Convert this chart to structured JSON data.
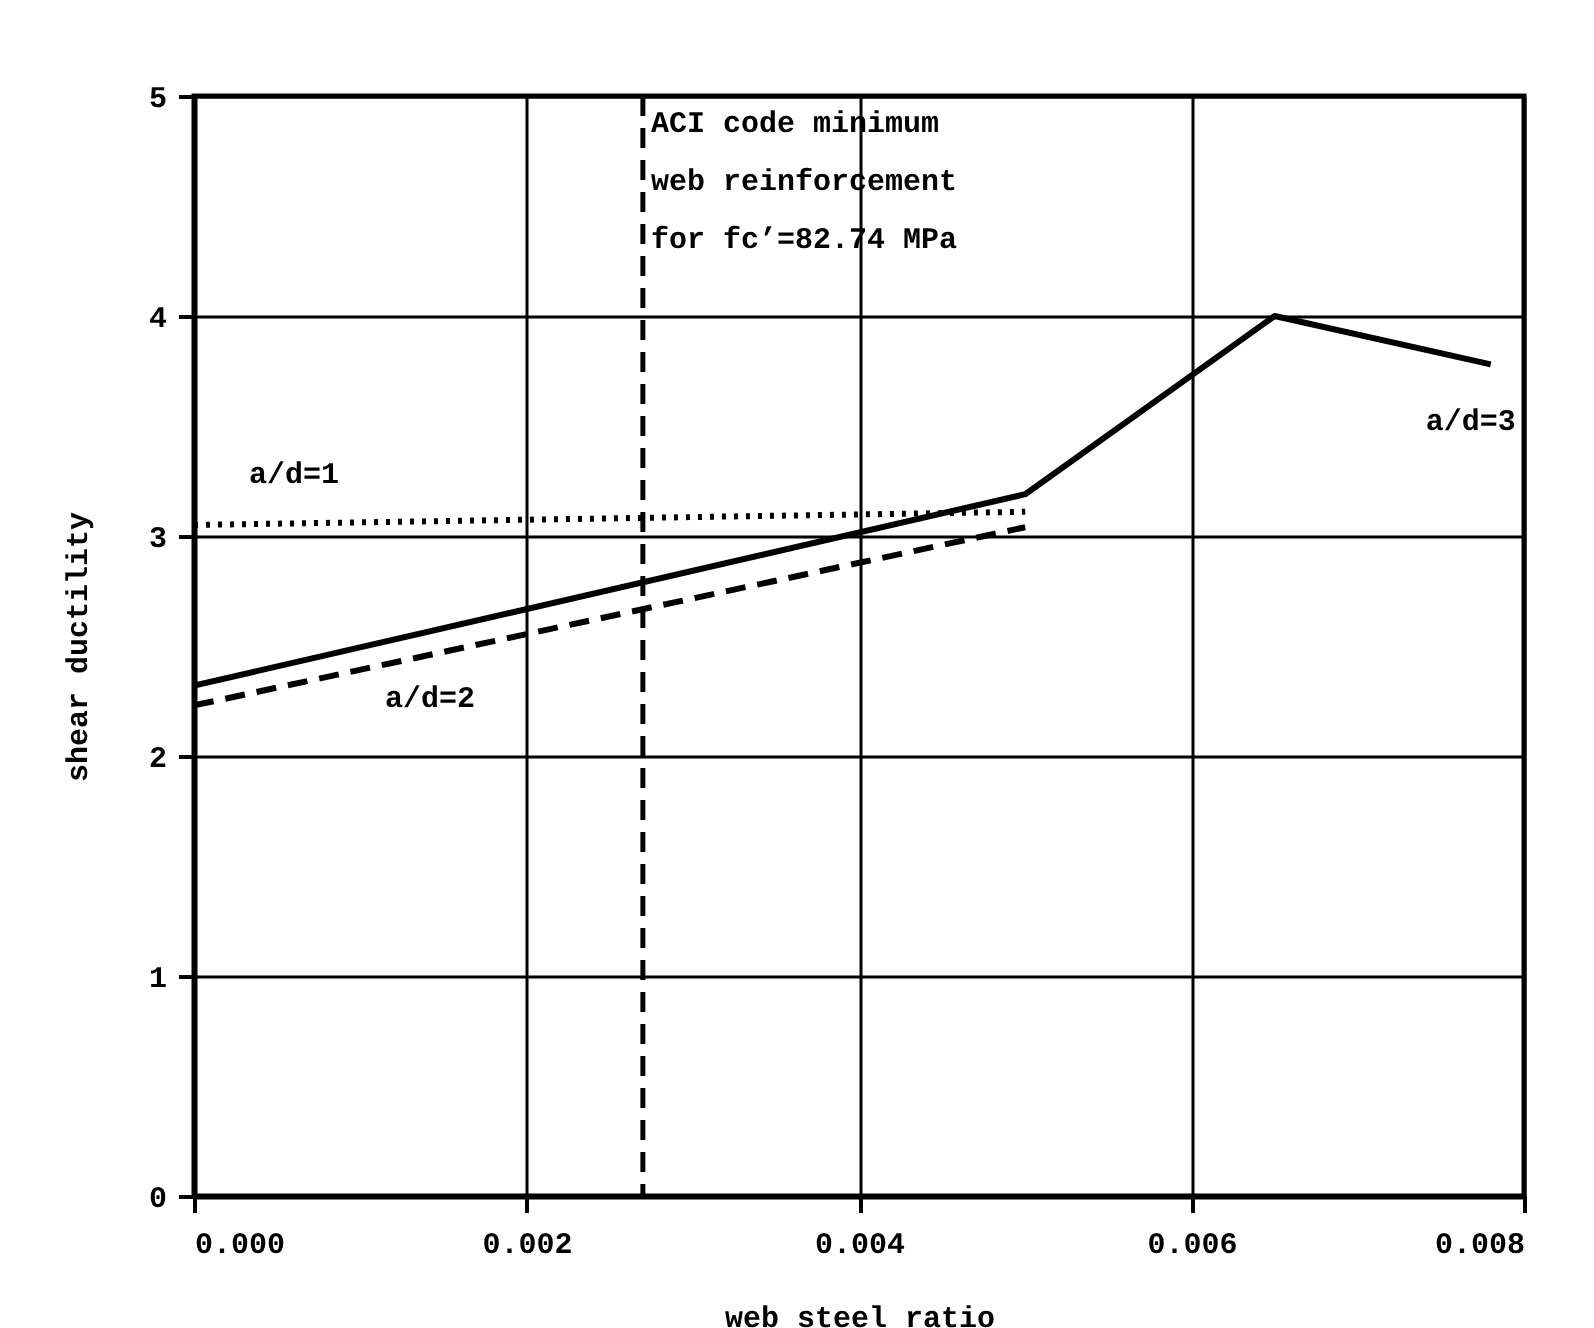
{
  "chart_data": {
    "type": "line",
    "xlabel": "web steel ratio",
    "ylabel": "shear ductility",
    "xlim": [
      0,
      0.008
    ],
    "ylim": [
      0,
      5
    ],
    "xticks": [
      {
        "value": 0,
        "label": "0.000"
      },
      {
        "value": 0.002,
        "label": "0.002"
      },
      {
        "value": 0.004,
        "label": "0.004"
      },
      {
        "value": 0.006,
        "label": "0.006"
      },
      {
        "value": 0.008,
        "label": "0.008"
      }
    ],
    "yticks": [
      0,
      1,
      2,
      3,
      4,
      5
    ],
    "grid": true,
    "series": [
      {
        "name": "a/d=1",
        "color": "#000000",
        "line_style": "dotted",
        "x": [
          0,
          0.005
        ],
        "values": [
          3.05,
          3.11
        ]
      },
      {
        "name": "a/d=2",
        "color": "#000000",
        "line_style": "dashed",
        "x": [
          0,
          0.005
        ],
        "values": [
          2.23,
          3.04
        ]
      },
      {
        "name": "a/d=3",
        "color": "#000000",
        "line_style": "solid",
        "x": [
          0,
          0.005,
          0.0065,
          0.0078
        ],
        "values": [
          2.32,
          3.19,
          4.0,
          3.78
        ]
      }
    ],
    "annotations": [
      {
        "text": "ACI code minimum\nweb reinforcement\nfor  fc’=82.74 MPa",
        "x": 0.0027,
        "y": 5
      }
    ],
    "ref_lines": [
      {
        "axis": "x",
        "value": 0.0027,
        "color": "#000000",
        "line_style": "dashed"
      }
    ]
  }
}
